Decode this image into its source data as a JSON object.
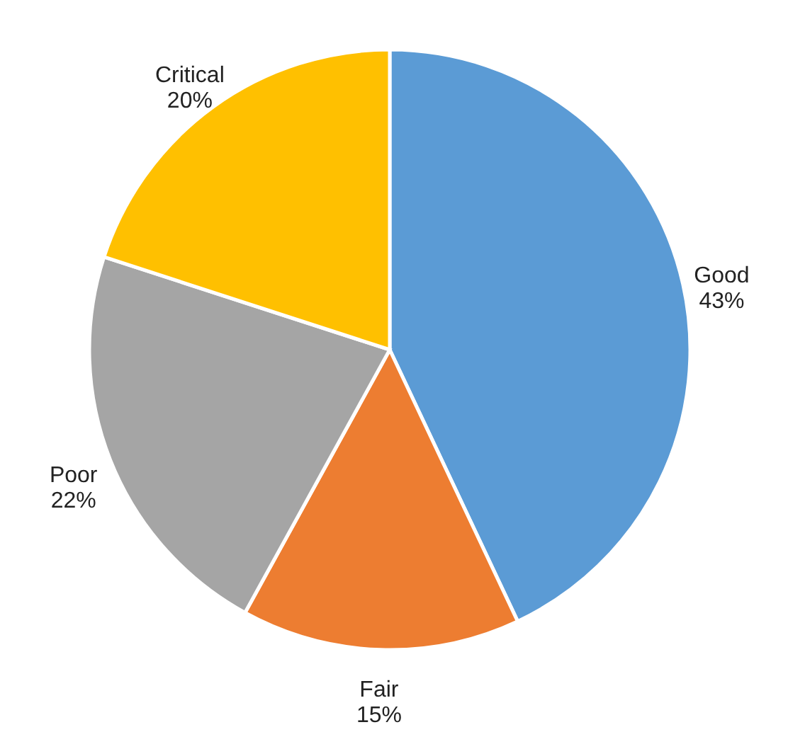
{
  "chart_data": {
    "type": "pie",
    "categories": [
      "Good",
      "Fair",
      "Poor",
      "Critical"
    ],
    "values": [
      43,
      15,
      22,
      20
    ],
    "value_labels": [
      "43%",
      "15%",
      "22%",
      "20%"
    ],
    "colors": [
      "#5b9bd5",
      "#ed7d31",
      "#a5a5a5",
      "#ffc000"
    ]
  }
}
